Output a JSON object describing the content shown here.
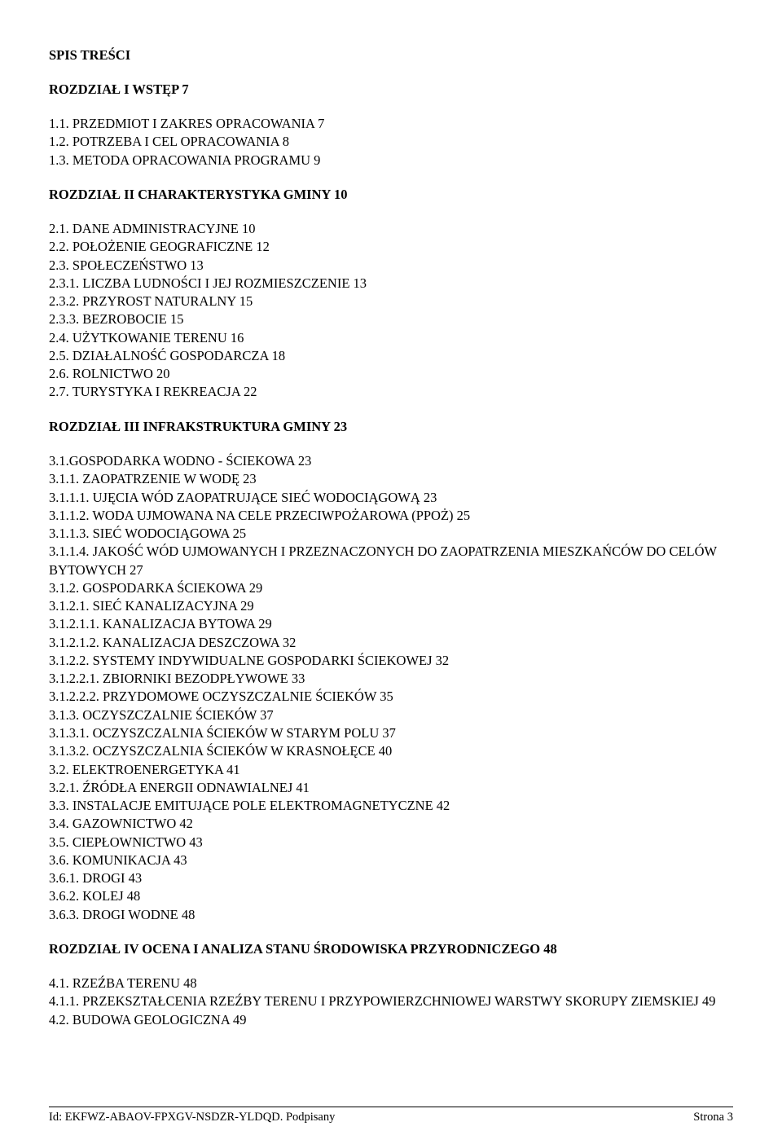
{
  "title": "SPIS TREŚCI",
  "chapter1": {
    "heading": "ROZDZIAŁ I WSTĘP 7",
    "lines": [
      "1.1. PRZEDMIOT I ZAKRES OPRACOWANIA 7",
      "1.2. POTRZEBA I CEL OPRACOWANIA 8",
      "1.3. METODA OPRACOWANIA PROGRAMU 9"
    ]
  },
  "chapter2": {
    "heading": "ROZDZIAŁ II CHARAKTERYSTYKA GMINY 10",
    "lines": [
      "2.1. DANE ADMINISTRACYJNE 10",
      "2.2. POŁOŻENIE GEOGRAFICZNE 12",
      "2.3. SPOŁECZEŃSTWO 13",
      "2.3.1. LICZBA LUDNOŚCI I JEJ ROZMIESZCZENIE 13",
      "2.3.2. PRZYROST NATURALNY 15",
      "2.3.3. BEZROBOCIE 15",
      "2.4. UŻYTKOWANIE TERENU 16",
      "2.5. DZIAŁALNOŚĆ GOSPODARCZA 18",
      "2.6. ROLNICTWO 20",
      "2.7. TURYSTYKA I REKREACJA 22"
    ]
  },
  "chapter3": {
    "heading": "ROZDZIAŁ III INFRAKSTRUKTURA GMINY 23",
    "lines": [
      "3.1.GOSPODARKA WODNO - ŚCIEKOWA 23",
      "3.1.1. ZAOPATRZENIE W WODĘ 23",
      "3.1.1.1. UJĘCIA WÓD ZAOPATRUJĄCE SIEĆ WODOCIĄGOWĄ 23",
      "3.1.1.2. WODA UJMOWANA NA CELE PRZECIWPOŻAROWA (PPOŻ) 25",
      "3.1.1.3. SIEĆ WODOCIĄGOWA 25",
      "3.1.1.4. JAKOŚĆ WÓD UJMOWANYCH I PRZEZNACZONYCH DO ZAOPATRZENIA MIESZKAŃCÓW DO CELÓW BYTOWYCH 27",
      "3.1.2. GOSPODARKA ŚCIEKOWA 29",
      "3.1.2.1. SIEĆ KANALIZACYJNA 29",
      "3.1.2.1.1. KANALIZACJA BYTOWA 29",
      "3.1.2.1.2. KANALIZACJA DESZCZOWA 32",
      "3.1.2.2. SYSTEMY INDYWIDUALNE GOSPODARKI ŚCIEKOWEJ 32",
      "3.1.2.2.1. ZBIORNIKI BEZODPŁYWOWE 33",
      "3.1.2.2.2. PRZYDOMOWE OCZYSZCZALNIE ŚCIEKÓW 35",
      "3.1.3. OCZYSZCZALNIE ŚCIEKÓW 37",
      "3.1.3.1. OCZYSZCZALNIA ŚCIEKÓW W STARYM POLU 37",
      "3.1.3.2. OCZYSZCZALNIA ŚCIEKÓW W KRASNOŁĘCE 40",
      "3.2. ELEKTROENERGETYKA 41",
      "3.2.1. ŹRÓDŁA ENERGII ODNAWIALNEJ 41",
      "3.3. INSTALACJE EMITUJĄCE POLE ELEKTROMAGNETYCZNE 42",
      "3.4. GAZOWNICTWO 42",
      "3.5. CIEPŁOWNICTWO 43",
      "3.6. KOMUNIKACJA 43",
      "3.6.1. DROGI 43",
      "3.6.2. KOLEJ 48",
      "3.6.3. DROGI WODNE 48"
    ]
  },
  "chapter4": {
    "heading": "ROZDZIAŁ IV OCENA I ANALIZA STANU ŚRODOWISKA PRZYRODNICZEGO 48",
    "lines": [
      "4.1. RZEŹBA TERENU 48",
      "4.1.1. PRZEKSZTAŁCENIA RZEŹBY TERENU I PRZYPOWIERZCHNIOWEJ WARSTWY SKORUPY ZIEMSKIEJ 49",
      "4.2. BUDOWA GEOLOGICZNA 49"
    ]
  },
  "footer": {
    "left": "Id: EKFWZ-ABAOV-FPXGV-NSDZR-YLDQD. Podpisany",
    "right": "Strona 3"
  }
}
